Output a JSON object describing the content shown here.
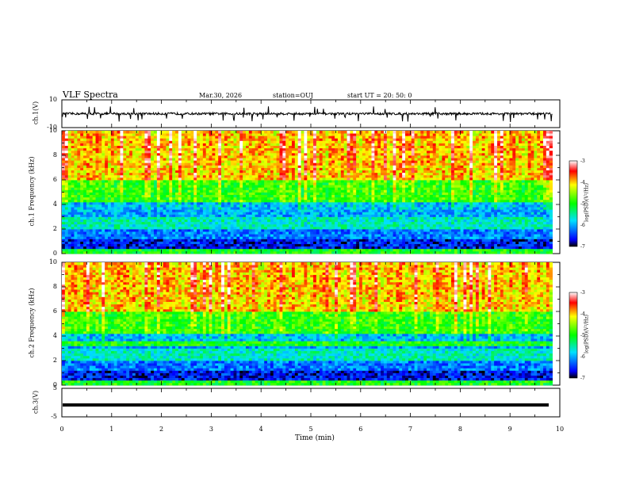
{
  "header": {
    "title": "VLF Spectra",
    "date": "Mar.30, 2026",
    "station": "station=OUJ",
    "start": "start  UT  =   20: 50: 0"
  },
  "colorbar": {
    "label": "log(PSD)(V²/Hz)",
    "ticks": [
      "-3",
      "-4",
      "-5",
      "-6",
      "-7"
    ],
    "range": [
      -7,
      -3
    ]
  },
  "chart_data": [
    {
      "type": "line",
      "panel": "ch1-waveform",
      "ylabel": "ch.1(V)",
      "ylim": [
        -10,
        10
      ],
      "yticks": [
        "10",
        "-10"
      ],
      "xlim": [
        0,
        10
      ],
      "description_values": {
        "baseline": 0,
        "spike_min": -6,
        "spike_max": 5
      }
    },
    {
      "type": "heatmap",
      "panel": "ch1-spectrogram",
      "ylabel": "ch.1 Frequency  (kHz)",
      "ylim": [
        0,
        10
      ],
      "yticks": [
        "0",
        "2",
        "4",
        "6",
        "8",
        "10"
      ],
      "xlim": [
        0,
        9.85
      ],
      "zlim": [
        -7,
        -3
      ]
    },
    {
      "type": "heatmap",
      "panel": "ch2-spectrogram",
      "ylabel": "ch.2 Frequency  (kHz)",
      "ylim": [
        0,
        10
      ],
      "yticks": [
        "0",
        "2",
        "4",
        "6",
        "8",
        "10"
      ],
      "xlim": [
        0,
        9.85
      ],
      "zlim": [
        -7,
        -3
      ]
    },
    {
      "type": "line",
      "panel": "ch3-waveform",
      "ylabel": "ch.3(V)",
      "ylim": [
        -5,
        5
      ],
      "yticks": [
        "5",
        "-5"
      ],
      "xlim": [
        0,
        10
      ],
      "description_values": {
        "baseline": 0
      }
    }
  ],
  "xaxis": {
    "label": "Time  (min)",
    "ticks": [
      "0",
      "1",
      "2",
      "3",
      "4",
      "5",
      "6",
      "7",
      "8",
      "9",
      "10"
    ],
    "range": [
      0,
      10
    ]
  }
}
